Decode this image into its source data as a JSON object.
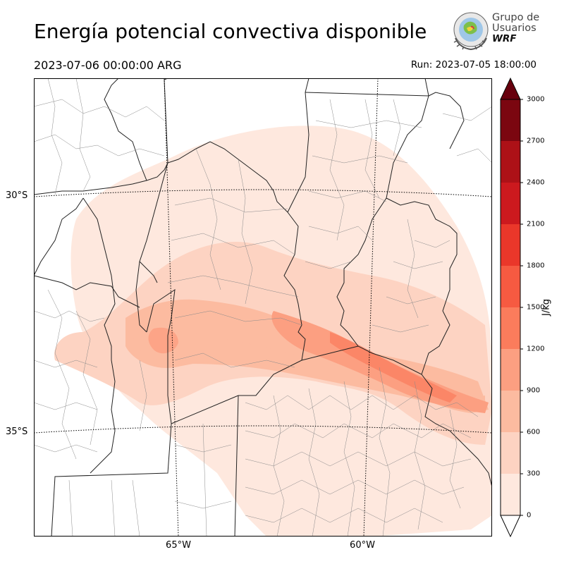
{
  "title": "Energía potencial convectiva disponible",
  "valid_time": "2023-07-06 00:00:00 ARG",
  "run_time": "Run: 2023-07-05 18:00:00",
  "logo": {
    "line1": "Grupo de",
    "line2": "Usuarios",
    "line3": "WRF"
  },
  "map": {
    "lat_labels": [
      "30°S",
      "35°S"
    ],
    "lon_labels": [
      "65°W",
      "60°W"
    ]
  },
  "colorbar": {
    "unit": "J/kg",
    "ticks": [
      "0",
      "300",
      "600",
      "900",
      "1200",
      "1500",
      "1800",
      "2100",
      "2400",
      "2700",
      "3000"
    ],
    "colors": [
      "#fee8de",
      "#fdd3c2",
      "#fcbba0",
      "#fc9f81",
      "#fb7c5c",
      "#f65a41",
      "#ea372a",
      "#cc191e",
      "#ad1117",
      "#7b0610"
    ],
    "extend_max_color": "#67000d"
  }
}
